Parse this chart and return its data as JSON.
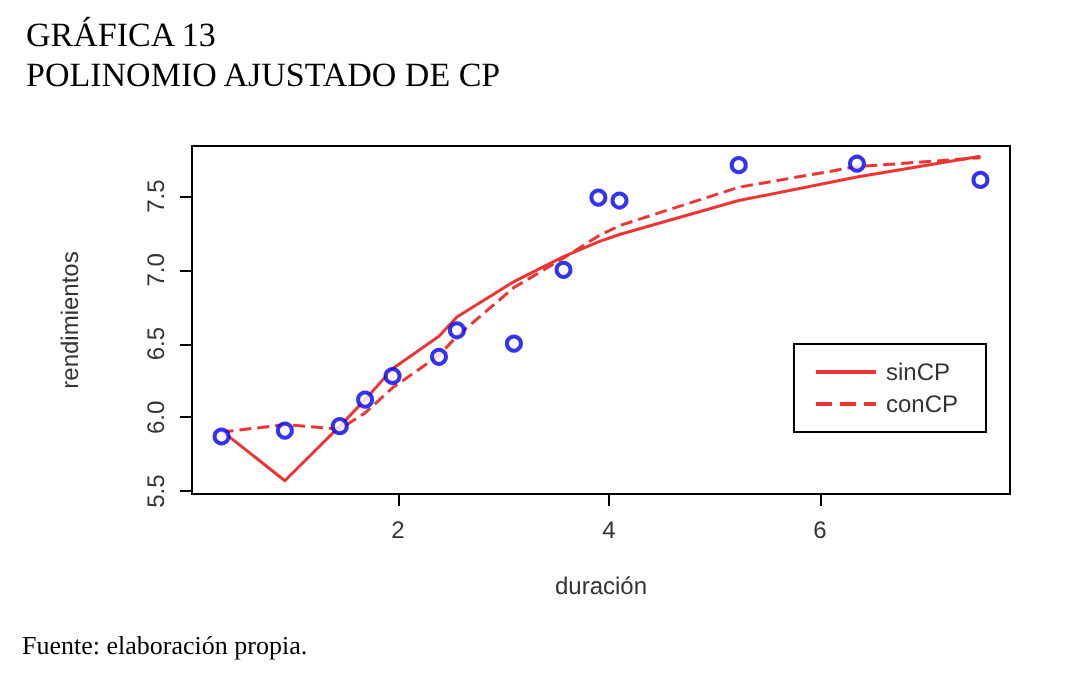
{
  "chart_data": {
    "type": "scatter",
    "title": "GRÁFICA 13",
    "subtitle": "POLINOMIO AJUSTADO DE CP",
    "xlabel": "duración",
    "ylabel": "rendimientos",
    "annotations": [
      "Fuente: elaboración propia."
    ],
    "x": [
      0.33,
      0.93,
      1.45,
      1.69,
      1.95,
      2.39,
      2.56,
      3.1,
      3.57,
      3.9,
      4.1,
      5.23,
      6.35,
      7.52
    ],
    "series": [
      {
        "color": "#0000ee",
        "marker": "circle",
        "values": [
          5.87,
          5.91,
          5.94,
          6.12,
          6.28,
          6.41,
          6.59,
          6.5,
          7.0,
          7.49,
          7.47,
          7.71,
          7.72,
          7.61
        ]
      },
      {
        "type": "line",
        "name": "sinCP",
        "color": "#ee3333",
        "line_style": "solid",
        "values": [
          5.91,
          5.57,
          5.94,
          6.12,
          6.33,
          6.55,
          6.68,
          6.92,
          7.09,
          7.19,
          7.24,
          7.47,
          7.63,
          7.77
        ]
      },
      {
        "type": "line",
        "name": "conCP",
        "color": "#ee3333",
        "line_style": "dashed",
        "values": [
          5.9,
          5.95,
          5.92,
          6.03,
          6.2,
          6.42,
          6.55,
          6.88,
          7.08,
          7.23,
          7.3,
          7.56,
          7.7,
          7.76
        ]
      }
    ],
    "xlim": [
      0.05,
      7.8
    ],
    "xticks": [
      2,
      4,
      6
    ],
    "ylim": [
      5.48,
      7.84
    ],
    "yticks": [
      5.5,
      {
        "value": 6,
        "label": "6.0"
      },
      6.5,
      {
        "value": 7,
        "label": "7.0"
      },
      7.5
    ],
    "grid": false,
    "legend": "right"
  }
}
